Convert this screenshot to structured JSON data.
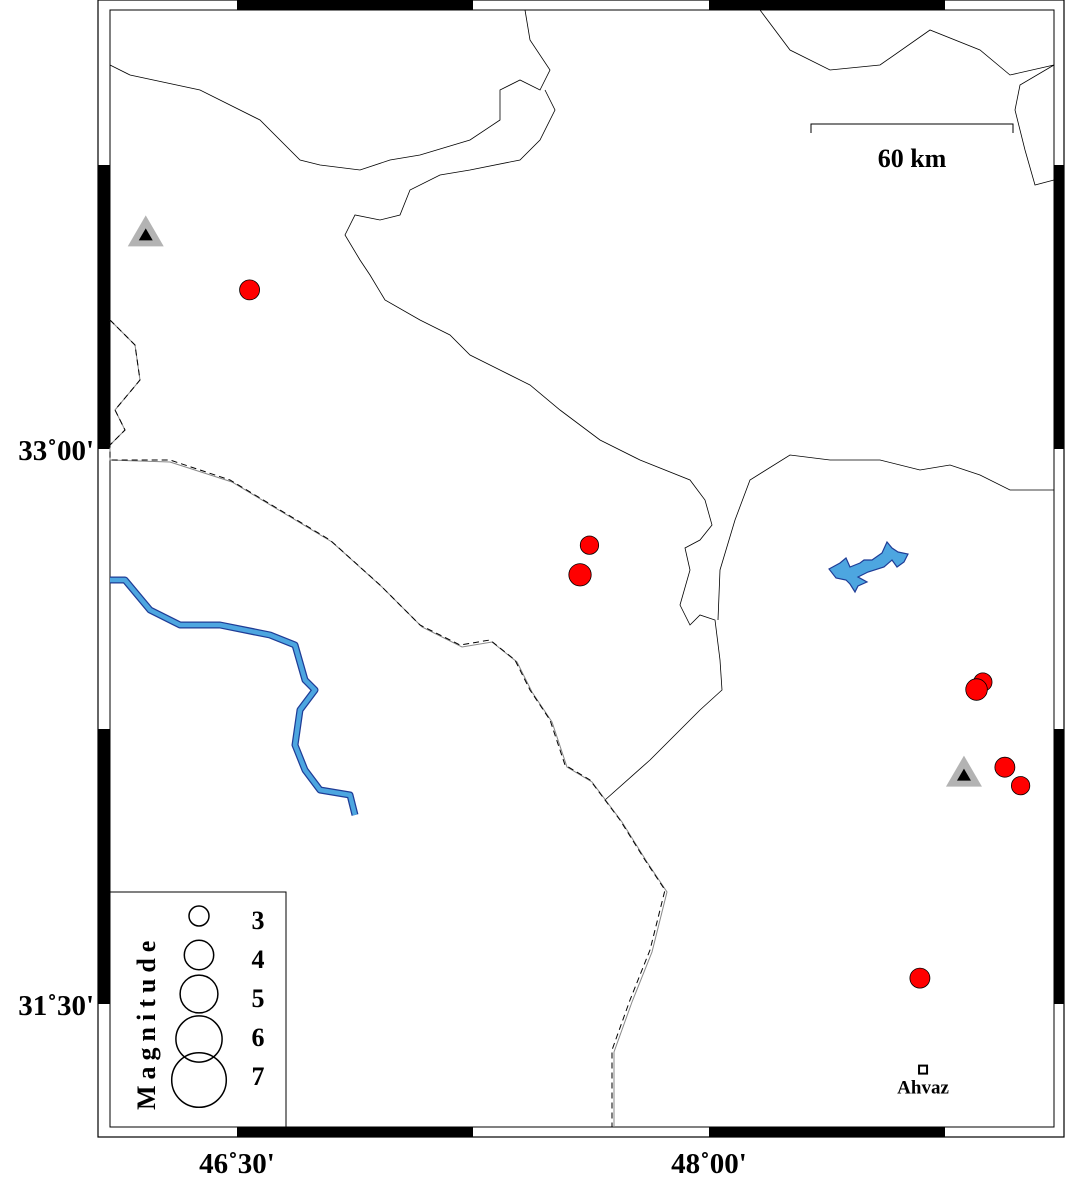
{
  "map": {
    "extent": {
      "lon": [
        46.05,
        49.05
      ],
      "lat": [
        31.22,
        34.23
      ]
    },
    "lon_ticks": [
      {
        "value": 46.5,
        "label": "46˚30'"
      },
      {
        "value": 48.0,
        "label": "48˚00'"
      }
    ],
    "lat_ticks": [
      {
        "value": 33.0,
        "label": "33˚00'"
      },
      {
        "value": 31.5,
        "label": "31˚30'"
      }
    ],
    "scale_bar": {
      "label": "60 km",
      "length_km": 60
    },
    "colors": {
      "event": "#ff0000",
      "water": "#4da6e0",
      "water_outline": "#1f3c96",
      "station_outer": "#b3b3b3",
      "station_inner": "#000000"
    },
    "events": [
      {
        "lon": 46.54,
        "lat": 33.43,
        "mag": 3.0
      },
      {
        "lon": 47.62,
        "lat": 32.74,
        "mag": 2.8
      },
      {
        "lon": 47.59,
        "lat": 32.66,
        "mag": 3.3
      },
      {
        "lon": 48.87,
        "lat": 32.37,
        "mag": 2.8
      },
      {
        "lon": 48.85,
        "lat": 32.35,
        "mag": 3.2
      },
      {
        "lon": 48.94,
        "lat": 32.14,
        "mag": 3.0
      },
      {
        "lon": 48.99,
        "lat": 32.09,
        "mag": 2.8
      },
      {
        "lon": 48.67,
        "lat": 31.57,
        "mag": 3.0
      }
    ],
    "stations": [
      {
        "lon": 46.21,
        "lat": 33.58
      },
      {
        "lon": 48.81,
        "lat": 32.12
      }
    ],
    "cities": [
      {
        "name": "Ahvaz",
        "lon": 48.68,
        "lat": 31.32
      }
    ],
    "legend": {
      "title": "Magnitude",
      "magnitudes": [
        3,
        4,
        5,
        6,
        7
      ]
    }
  }
}
